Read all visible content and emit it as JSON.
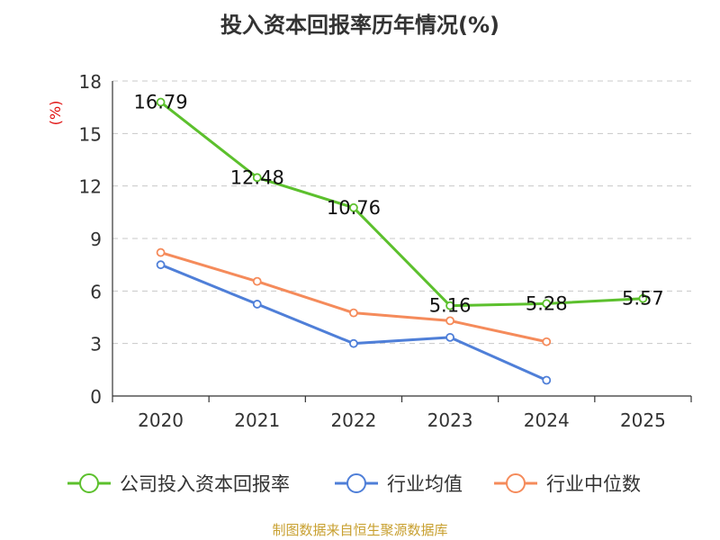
{
  "chart_data": {
    "type": "line",
    "title": "投入资本回报率历年情况(%)",
    "ylabel": "(%)",
    "xlabel": "",
    "categories": [
      "2020",
      "2021",
      "2022",
      "2023",
      "2024",
      "2025"
    ],
    "ylim": [
      0,
      18
    ],
    "yticks": [
      0,
      3,
      6,
      9,
      12,
      15,
      18
    ],
    "grid": true,
    "legend_position": "bottom",
    "series": [
      {
        "name": "公司投入资本回报率",
        "color": "#5cc02d",
        "show_labels": true,
        "values": [
          16.79,
          12.48,
          10.76,
          5.16,
          5.28,
          5.57
        ],
        "labels": [
          "16.79",
          "12.48",
          "10.76",
          "5.16",
          "5.28",
          "5.57"
        ]
      },
      {
        "name": "行业均值",
        "color": "#4f7fd8",
        "show_labels": false,
        "values": [
          7.5,
          5.25,
          3.0,
          3.35,
          0.9,
          null
        ]
      },
      {
        "name": "行业中位数",
        "color": "#f58b5b",
        "show_labels": false,
        "values": [
          8.2,
          6.55,
          4.75,
          4.3,
          3.1,
          null
        ]
      }
    ]
  },
  "source": "制图数据来自恒生聚源数据库"
}
